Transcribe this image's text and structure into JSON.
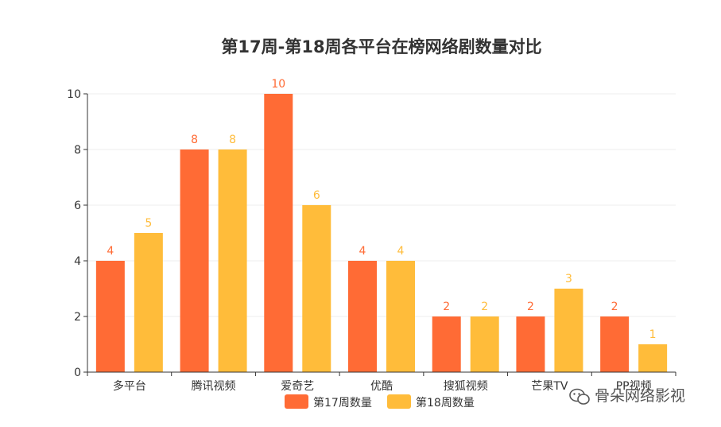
{
  "colors": {
    "series1": "#FF6B35",
    "series2": "#FFBC3A",
    "axis": "#333333",
    "grid": "#eeeeee"
  },
  "watermark": {
    "icon": "wechat-icon",
    "text": "骨朵网络影视"
  },
  "chart_data": {
    "type": "bar",
    "title": "第17周-第18周各平台在榜网络剧数量对比",
    "categories": [
      "多平台",
      "腾讯视频",
      "爱奇艺",
      "优酷",
      "搜狐视频",
      "芒果TV",
      "PP视频"
    ],
    "series": [
      {
        "name": "第17周数量",
        "values": [
          4,
          8,
          10,
          4,
          2,
          2,
          2
        ]
      },
      {
        "name": "第18周数量",
        "values": [
          5,
          8,
          6,
          4,
          2,
          3,
          1
        ]
      }
    ],
    "yticks": [
      "0",
      "2",
      "4",
      "6",
      "8",
      "10"
    ],
    "ylim": [
      0,
      10
    ],
    "grid": true,
    "legend": "bottom-center"
  }
}
